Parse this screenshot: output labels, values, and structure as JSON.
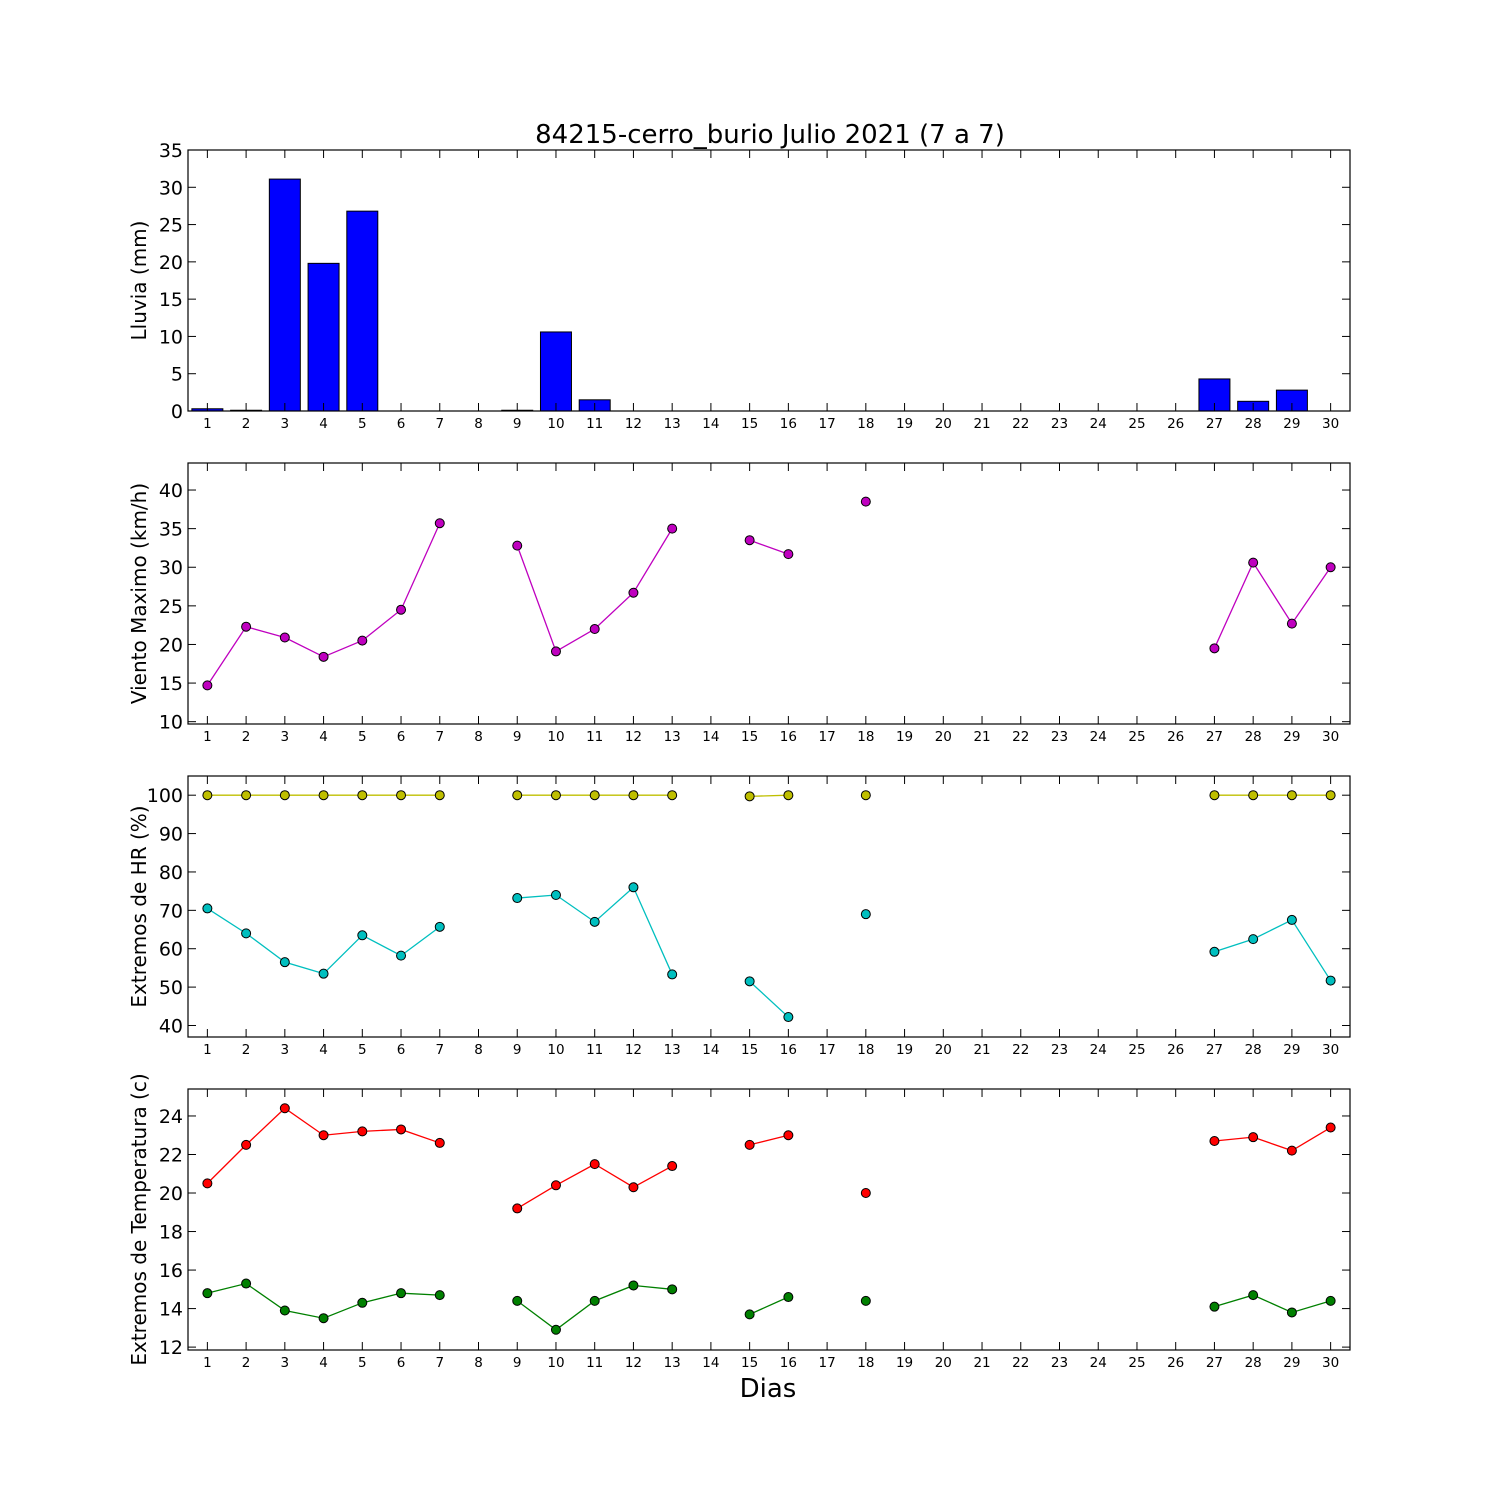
{
  "title": "84215-cerro_burio Julio 2021  (7 a 7)",
  "xlabel": "Dias",
  "days": [
    1,
    2,
    3,
    4,
    5,
    6,
    7,
    8,
    9,
    10,
    11,
    12,
    13,
    14,
    15,
    16,
    17,
    18,
    19,
    20,
    21,
    22,
    23,
    24,
    25,
    26,
    27,
    28,
    29,
    30
  ],
  "chart_data": [
    {
      "type": "bar",
      "ylabel": "Lluvia (mm)",
      "ylim": [
        0,
        35
      ],
      "yticks": [
        0,
        5,
        10,
        15,
        20,
        25,
        30,
        35
      ],
      "xlim": [
        0.5,
        30.5
      ],
      "grid": false,
      "categories": [
        1,
        2,
        3,
        4,
        5,
        6,
        7,
        8,
        9,
        10,
        11,
        12,
        13,
        14,
        15,
        16,
        17,
        18,
        19,
        20,
        21,
        22,
        23,
        24,
        25,
        26,
        27,
        28,
        29,
        30
      ],
      "series": [
        {
          "color": "#0000ff",
          "values": [
            0.3,
            0.1,
            31.1,
            19.8,
            26.8,
            0,
            0,
            null,
            0.1,
            10.6,
            1.5,
            0,
            0,
            null,
            0,
            0,
            null,
            0,
            null,
            null,
            null,
            null,
            null,
            null,
            null,
            null,
            4.3,
            1.3,
            2.8,
            null
          ]
        }
      ]
    },
    {
      "type": "line",
      "ylabel": "Viento Maximo (km/h)",
      "ylim": [
        9.7,
        43.5
      ],
      "yticks": [
        10,
        15,
        20,
        25,
        30,
        35,
        40
      ],
      "xlim": [
        0.5,
        30.5
      ],
      "grid": false,
      "x": [
        1,
        2,
        3,
        4,
        5,
        6,
        7,
        8,
        9,
        10,
        11,
        12,
        13,
        14,
        15,
        16,
        17,
        18,
        19,
        20,
        21,
        22,
        23,
        24,
        25,
        26,
        27,
        28,
        29,
        30
      ],
      "series": [
        {
          "color": "#bf00bf",
          "values": [
            14.7,
            22.3,
            20.9,
            18.4,
            20.5,
            24.5,
            35.7,
            null,
            32.8,
            19.1,
            22.0,
            26.7,
            35.0,
            null,
            33.5,
            31.7,
            null,
            38.5,
            null,
            null,
            null,
            null,
            null,
            null,
            null,
            null,
            19.5,
            30.6,
            22.7,
            30.0
          ]
        }
      ]
    },
    {
      "type": "line",
      "ylabel": "Extremos de HR (%)",
      "ylim": [
        37,
        105
      ],
      "yticks": [
        40,
        50,
        60,
        70,
        80,
        90,
        100
      ],
      "xlim": [
        0.5,
        30.5
      ],
      "grid": false,
      "x": [
        1,
        2,
        3,
        4,
        5,
        6,
        7,
        8,
        9,
        10,
        11,
        12,
        13,
        14,
        15,
        16,
        17,
        18,
        19,
        20,
        21,
        22,
        23,
        24,
        25,
        26,
        27,
        28,
        29,
        30
      ],
      "series": [
        {
          "color": "#bfbf00",
          "values": [
            100,
            100,
            100,
            100,
            100,
            100,
            100,
            null,
            100,
            100,
            100,
            100,
            100,
            null,
            99.7,
            100,
            null,
            100,
            null,
            null,
            null,
            null,
            null,
            null,
            null,
            null,
            100,
            100,
            100,
            100
          ]
        },
        {
          "color": "#00bfbf",
          "values": [
            70.5,
            64.0,
            56.5,
            53.5,
            63.5,
            58.2,
            65.7,
            null,
            73.2,
            74.0,
            67.0,
            76.0,
            53.3,
            null,
            51.5,
            42.2,
            null,
            69.0,
            null,
            null,
            null,
            null,
            null,
            null,
            null,
            null,
            59.2,
            62.5,
            67.5,
            51.7
          ]
        }
      ]
    },
    {
      "type": "line",
      "ylabel": "Extremos de Temperatura (c)",
      "ylim": [
        11.85,
        25.4
      ],
      "yticks": [
        12,
        14,
        16,
        18,
        20,
        22,
        24
      ],
      "xlim": [
        0.5,
        30.5
      ],
      "grid": false,
      "x": [
        1,
        2,
        3,
        4,
        5,
        6,
        7,
        8,
        9,
        10,
        11,
        12,
        13,
        14,
        15,
        16,
        17,
        18,
        19,
        20,
        21,
        22,
        23,
        24,
        25,
        26,
        27,
        28,
        29,
        30
      ],
      "series": [
        {
          "color": "#ff0000",
          "values": [
            20.5,
            22.5,
            24.4,
            23.0,
            23.2,
            23.3,
            22.6,
            null,
            19.2,
            20.4,
            21.5,
            20.3,
            21.4,
            null,
            22.5,
            23.0,
            null,
            20.0,
            null,
            null,
            null,
            null,
            null,
            null,
            null,
            null,
            22.7,
            22.9,
            22.2,
            23.4
          ]
        },
        {
          "color": "#008000",
          "values": [
            14.8,
            15.3,
            13.9,
            13.5,
            14.3,
            14.8,
            14.7,
            null,
            14.4,
            12.9,
            14.4,
            15.2,
            15.0,
            null,
            13.7,
            14.6,
            null,
            14.4,
            null,
            null,
            null,
            null,
            null,
            null,
            null,
            null,
            14.1,
            14.7,
            13.8,
            14.4
          ]
        }
      ]
    }
  ]
}
